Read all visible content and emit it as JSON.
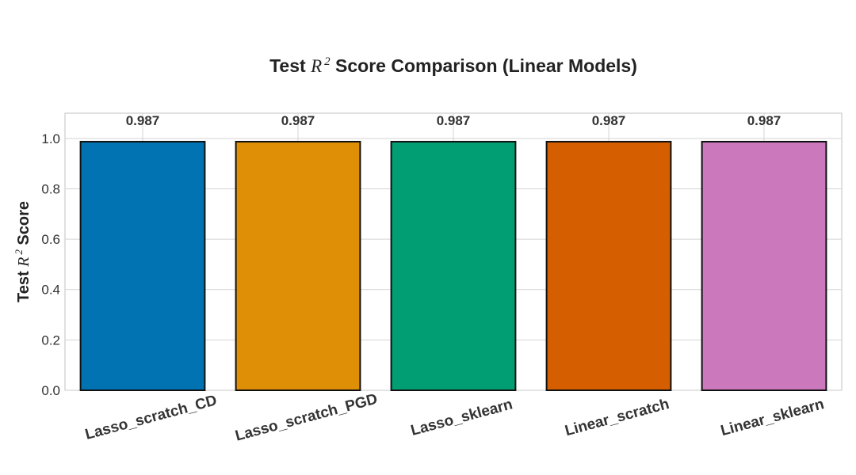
{
  "chart_data": {
    "type": "bar",
    "title": {
      "prefix": "Test ",
      "var": "R",
      "sup": "2",
      "suffix": " Score Comparison (Linear Models)"
    },
    "ylabel": {
      "prefix": "Test ",
      "var": "R",
      "sup": "2",
      "suffix": " Score"
    },
    "xlabel": "",
    "categories": [
      "Lasso_scratch_CD",
      "Lasso_scratch_PGD",
      "Lasso_sklearn",
      "Linear_scratch",
      "Linear_sklearn"
    ],
    "values": [
      0.987,
      0.987,
      0.987,
      0.987,
      0.987
    ],
    "value_labels": [
      "0.987",
      "0.987",
      "0.987",
      "0.987",
      "0.987"
    ],
    "colors": [
      "#0173b2",
      "#de8f05",
      "#029e73",
      "#d55e00",
      "#cc78bc"
    ],
    "ylim": [
      0,
      1.1
    ],
    "yticks": [
      0.0,
      0.2,
      0.4,
      0.6,
      0.8,
      1.0
    ],
    "ytick_labels": [
      "0.0",
      "0.2",
      "0.4",
      "0.6",
      "0.8",
      "1.0"
    ],
    "grid": true,
    "legend": "none"
  }
}
